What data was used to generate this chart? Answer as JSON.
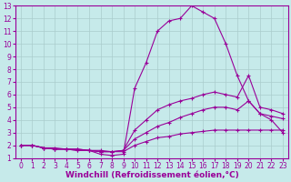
{
  "background_color": "#c6eaea",
  "grid_color": "#aacccc",
  "line_color": "#990099",
  "xlabel": "Windchill (Refroidissement éolien,°C)",
  "xlim": [
    -0.5,
    23.5
  ],
  "ylim": [
    1,
    13
  ],
  "xticks": [
    0,
    1,
    2,
    3,
    4,
    5,
    6,
    7,
    8,
    9,
    10,
    11,
    12,
    13,
    14,
    15,
    16,
    17,
    18,
    19,
    20,
    21,
    22,
    23
  ],
  "yticks": [
    1,
    2,
    3,
    4,
    5,
    6,
    7,
    8,
    9,
    10,
    11,
    12,
    13
  ],
  "line1_x": [
    0,
    1,
    2,
    3,
    4,
    5,
    6,
    7,
    8,
    9,
    10,
    11,
    12,
    13,
    14,
    15,
    16,
    17,
    18,
    19,
    20,
    21,
    22,
    23
  ],
  "line1_y": [
    2,
    2,
    1.8,
    1.8,
    1.7,
    1.7,
    1.6,
    1.3,
    1.2,
    1.3,
    6.5,
    8.5,
    11,
    11.8,
    12,
    13,
    12.5,
    12,
    10,
    7.5,
    5.5,
    4.5,
    4.0,
    3.0
  ],
  "line2_x": [
    0,
    1,
    2,
    3,
    4,
    5,
    6,
    7,
    8,
    9,
    10,
    11,
    12,
    13,
    14,
    15,
    16,
    17,
    18,
    19,
    20,
    21,
    22,
    23
  ],
  "line2_y": [
    2,
    2,
    1.8,
    1.7,
    1.7,
    1.6,
    1.6,
    1.5,
    1.5,
    1.6,
    3.2,
    4.0,
    4.8,
    5.2,
    5.5,
    5.7,
    6.0,
    6.2,
    6.0,
    5.8,
    7.5,
    5.0,
    4.8,
    4.5
  ],
  "line3_x": [
    0,
    1,
    2,
    3,
    4,
    5,
    6,
    7,
    8,
    9,
    10,
    11,
    12,
    13,
    14,
    15,
    16,
    17,
    18,
    19,
    20,
    21,
    22,
    23
  ],
  "line3_y": [
    2,
    2,
    1.8,
    1.7,
    1.7,
    1.6,
    1.6,
    1.5,
    1.5,
    1.6,
    2.5,
    3.0,
    3.5,
    3.8,
    4.2,
    4.5,
    4.8,
    5.0,
    5.0,
    4.8,
    5.5,
    4.5,
    4.3,
    4.1
  ],
  "line4_x": [
    0,
    1,
    2,
    3,
    4,
    5,
    6,
    7,
    8,
    9,
    10,
    11,
    12,
    13,
    14,
    15,
    16,
    17,
    18,
    19,
    20,
    21,
    22,
    23
  ],
  "line4_y": [
    2,
    2,
    1.8,
    1.7,
    1.7,
    1.7,
    1.6,
    1.6,
    1.5,
    1.5,
    2.0,
    2.3,
    2.6,
    2.7,
    2.9,
    3.0,
    3.1,
    3.2,
    3.2,
    3.2,
    3.2,
    3.2,
    3.2,
    3.2
  ],
  "marker": "+",
  "markersize": 3,
  "linewidth": 0.8,
  "tick_fontsize": 5.5,
  "label_fontsize": 6.5
}
